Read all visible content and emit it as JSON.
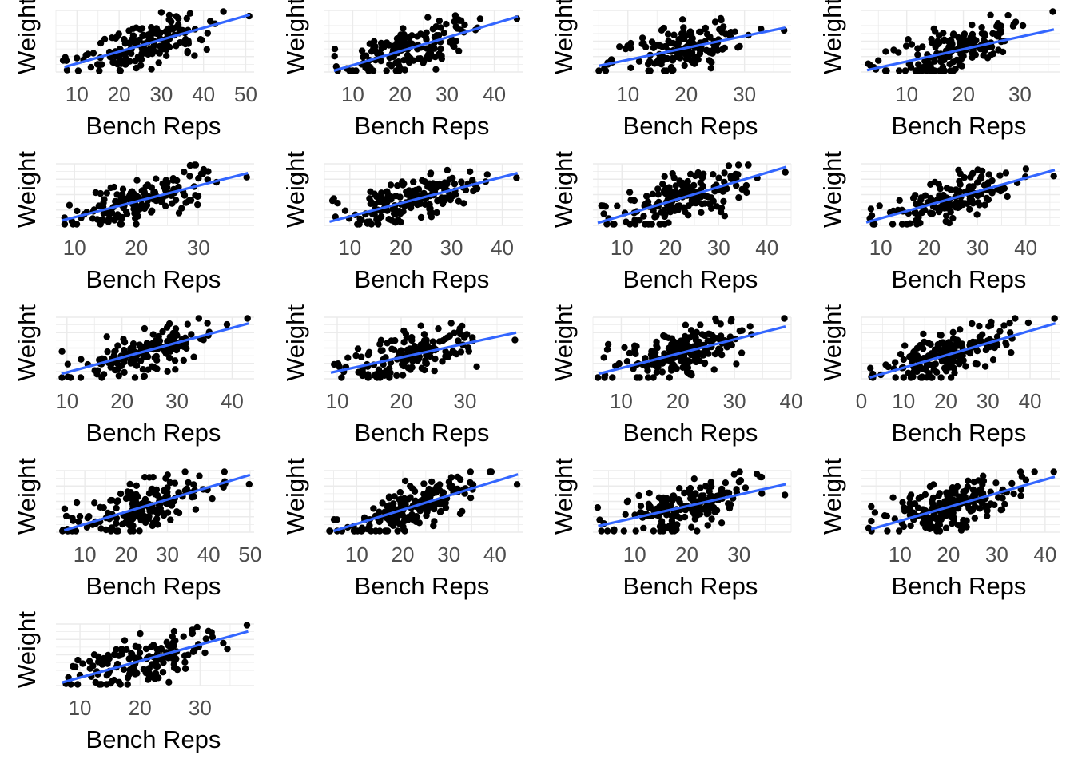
{
  "figure": {
    "layout": "facet-grid",
    "columns": 4,
    "rows": 5,
    "grid": true,
    "point_color": "#000000",
    "trend_color": "#3366ff",
    "gridline_color": "#ebebeb",
    "tick_label_color": "#4d4d4d",
    "axis_title_color": "#000000"
  },
  "chart_data": [
    {
      "type": "scatter",
      "xlabel": "Bench Reps",
      "ylabel": "Weight",
      "xlim": [
        5,
        52
      ],
      "ylim": [
        0,
        10
      ],
      "xticks": [
        10,
        20,
        30,
        40,
        50
      ],
      "trend": {
        "x": [
          7,
          51
        ],
        "y": [
          0.8,
          9.3
        ]
      },
      "seed": 1,
      "n": 170
    },
    {
      "type": "scatter",
      "xlabel": "Bench Reps",
      "ylabel": "Weight",
      "xlim": [
        4,
        46
      ],
      "ylim": [
        0,
        10
      ],
      "xticks": [
        10,
        20,
        30,
        40
      ],
      "trend": {
        "x": [
          6,
          45
        ],
        "y": [
          0.2,
          9.0
        ]
      },
      "seed": 2,
      "n": 150
    },
    {
      "type": "scatter",
      "xlabel": "Bench Reps",
      "ylabel": "Weight",
      "xlim": [
        4,
        38
      ],
      "ylim": [
        0,
        10
      ],
      "xticks": [
        10,
        20,
        30
      ],
      "trend": {
        "x": [
          5,
          37
        ],
        "y": [
          1.0,
          7.2
        ]
      },
      "seed": 3,
      "n": 150
    },
    {
      "type": "scatter",
      "xlabel": "Bench Reps",
      "ylabel": "Weight",
      "xlim": [
        2,
        37
      ],
      "ylim": [
        0,
        10
      ],
      "xticks": [
        10,
        20,
        30
      ],
      "trend": {
        "x": [
          3,
          36
        ],
        "y": [
          0.3,
          6.9
        ]
      },
      "seed": 4,
      "n": 170
    },
    {
      "type": "scatter",
      "xlabel": "Bench Reps",
      "ylabel": "Weight",
      "xlim": [
        7,
        39
      ],
      "ylim": [
        0,
        10
      ],
      "xticks": [
        10,
        20,
        30
      ],
      "trend": {
        "x": [
          8,
          38
        ],
        "y": [
          0.8,
          8.5
        ]
      },
      "seed": 5,
      "n": 160
    },
    {
      "type": "scatter",
      "xlabel": "Bench Reps",
      "ylabel": "Weight",
      "xlim": [
        5,
        44
      ],
      "ylim": [
        0,
        10
      ],
      "xticks": [
        10,
        20,
        30,
        40
      ],
      "trend": {
        "x": [
          6,
          43
        ],
        "y": [
          0.6,
          8.5
        ]
      },
      "seed": 6,
      "n": 170
    },
    {
      "type": "scatter",
      "xlabel": "Bench Reps",
      "ylabel": "Weight",
      "xlim": [
        4,
        45
      ],
      "ylim": [
        0,
        10
      ],
      "xticks": [
        10,
        20,
        30,
        40
      ],
      "trend": {
        "x": [
          5,
          44
        ],
        "y": [
          0.4,
          9.5
        ]
      },
      "seed": 7,
      "n": 180
    },
    {
      "type": "scatter",
      "xlabel": "Bench Reps",
      "ylabel": "Weight",
      "xlim": [
        6,
        47
      ],
      "ylim": [
        0,
        10
      ],
      "xticks": [
        10,
        20,
        30,
        40
      ],
      "trend": {
        "x": [
          7,
          46
        ],
        "y": [
          0.5,
          9.0
        ]
      },
      "seed": 8,
      "n": 150
    },
    {
      "type": "scatter",
      "xlabel": "Bench Reps",
      "ylabel": "Weight",
      "xlim": [
        8,
        44
      ],
      "ylim": [
        0,
        10
      ],
      "xticks": [
        10,
        20,
        30,
        40
      ],
      "trend": {
        "x": [
          9,
          43
        ],
        "y": [
          0.8,
          9.0
        ]
      },
      "seed": 9,
      "n": 160
    },
    {
      "type": "scatter",
      "xlabel": "Bench Reps",
      "ylabel": "Weight",
      "xlim": [
        8,
        39
      ],
      "ylim": [
        0,
        10
      ],
      "xticks": [
        10,
        20,
        30
      ],
      "trend": {
        "x": [
          9,
          38
        ],
        "y": [
          1.0,
          7.5
        ]
      },
      "seed": 10,
      "n": 150
    },
    {
      "type": "scatter",
      "xlabel": "Bench Reps",
      "ylabel": "Weight",
      "xlim": [
        5,
        40
      ],
      "ylim": [
        0,
        10
      ],
      "xticks": [
        10,
        20,
        30,
        40
      ],
      "trend": {
        "x": [
          6,
          39
        ],
        "y": [
          0.8,
          8.5
        ]
      },
      "seed": 11,
      "n": 200
    },
    {
      "type": "scatter",
      "xlabel": "Bench Reps",
      "ylabel": "Weight",
      "xlim": [
        0,
        47
      ],
      "ylim": [
        0,
        10
      ],
      "xticks": [
        0,
        10,
        20,
        30,
        40
      ],
      "trend": {
        "x": [
          2,
          46
        ],
        "y": [
          0.2,
          9.0
        ]
      },
      "seed": 12,
      "n": 180
    },
    {
      "type": "scatter",
      "xlabel": "Bench Reps",
      "ylabel": "Weight",
      "xlim": [
        3,
        51
      ],
      "ylim": [
        0,
        10
      ],
      "xticks": [
        10,
        20,
        30,
        40,
        50
      ],
      "trend": {
        "x": [
          5,
          50
        ],
        "y": [
          0.3,
          9.3
        ]
      },
      "seed": 13,
      "n": 180
    },
    {
      "type": "scatter",
      "xlabel": "Bench Reps",
      "ylabel": "Weight",
      "xlim": [
        3,
        46
      ],
      "ylim": [
        0,
        10
      ],
      "xticks": [
        10,
        20,
        30,
        40
      ],
      "trend": {
        "x": [
          5,
          45
        ],
        "y": [
          0.2,
          9.4
        ]
      },
      "seed": 14,
      "n": 190
    },
    {
      "type": "scatter",
      "xlabel": "Bench Reps",
      "ylabel": "Weight",
      "xlim": [
        2,
        40
      ],
      "ylim": [
        0,
        10
      ],
      "xticks": [
        10,
        20,
        30
      ],
      "trend": {
        "x": [
          3,
          39
        ],
        "y": [
          1.0,
          7.8
        ]
      },
      "seed": 15,
      "n": 180
    },
    {
      "type": "scatter",
      "xlabel": "Bench Reps",
      "ylabel": "Weight",
      "xlim": [
        2,
        43
      ],
      "ylim": [
        0,
        10
      ],
      "xticks": [
        10,
        20,
        30,
        40
      ],
      "trend": {
        "x": [
          4,
          42
        ],
        "y": [
          0.5,
          9.0
        ]
      },
      "seed": 16,
      "n": 200
    },
    {
      "type": "scatter",
      "xlabel": "Bench Reps",
      "ylabel": "Weight",
      "xlim": [
        6,
        39
      ],
      "ylim": [
        0,
        10
      ],
      "xticks": [
        10,
        20,
        30
      ],
      "trend": {
        "x": [
          7,
          38
        ],
        "y": [
          0.5,
          8.8
        ]
      },
      "seed": 17,
      "n": 160
    }
  ]
}
